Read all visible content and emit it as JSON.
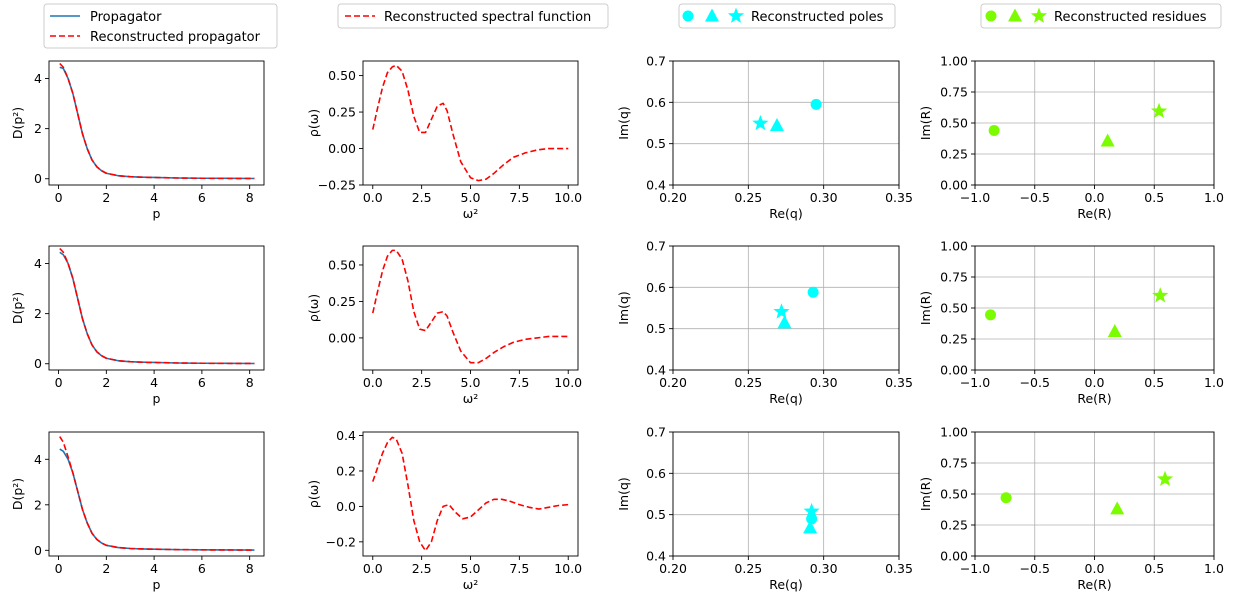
{
  "colors": {
    "propagator": "#1f77b4",
    "reconstructed": "#ff0000",
    "poles": "#00ffff",
    "residues": "#7cfc00",
    "grid": "#b0b0b0",
    "legend_border": "#cccccc"
  },
  "legends": {
    "col1": [
      {
        "label": "Propagator",
        "style": "solid",
        "color": "#1f77b4"
      },
      {
        "label": "Reconstructed propagator",
        "style": "dashed",
        "color": "#ff0000"
      }
    ],
    "col2": [
      {
        "label": "Reconstructed spectral function",
        "style": "dashed",
        "color": "#ff0000"
      }
    ],
    "col3": {
      "label": "Reconstructed poles",
      "markers": [
        "circle",
        "triangle",
        "star"
      ],
      "color": "#00ffff"
    },
    "col4": {
      "label": "Reconstructed residues",
      "markers": [
        "circle",
        "triangle",
        "star"
      ],
      "color": "#7cfc00"
    }
  },
  "chart_data": [
    {
      "type": "line",
      "panel": "propagator-row1",
      "xlabel": "p",
      "ylabel": "D(p²)",
      "xlim": [
        -0.4,
        8.6
      ],
      "ylim": [
        -0.25,
        4.7
      ],
      "xticks": [
        "0",
        "2",
        "4",
        "6",
        "8"
      ],
      "yticks": [
        "0",
        "2",
        "4"
      ],
      "grid": false,
      "series": [
        {
          "name": "Propagator",
          "style": "solid",
          "color": "#1f77b4",
          "x": [
            0.05,
            0.2,
            0.4,
            0.6,
            0.8,
            1.0,
            1.2,
            1.4,
            1.6,
            1.8,
            2.0,
            2.5,
            3.0,
            3.5,
            4.0,
            5.0,
            6.0,
            7.0,
            8.2
          ],
          "y": [
            4.45,
            4.4,
            4.0,
            3.4,
            2.6,
            1.8,
            1.2,
            0.75,
            0.48,
            0.32,
            0.22,
            0.12,
            0.08,
            0.06,
            0.05,
            0.03,
            0.02,
            0.015,
            0.01
          ]
        },
        {
          "name": "Reconstructed propagator",
          "style": "dashed",
          "color": "#ff0000",
          "x": [
            0.05,
            0.2,
            0.4,
            0.6,
            0.8,
            1.0,
            1.2,
            1.4,
            1.6,
            1.8,
            2.0,
            2.5,
            3.0,
            3.5,
            4.0,
            5.0,
            6.0,
            7.0,
            8.2
          ],
          "y": [
            4.6,
            4.45,
            4.0,
            3.4,
            2.6,
            1.8,
            1.2,
            0.75,
            0.48,
            0.32,
            0.22,
            0.12,
            0.08,
            0.06,
            0.05,
            0.03,
            0.02,
            0.015,
            0.01
          ]
        }
      ]
    },
    {
      "type": "line",
      "panel": "spectral-row1",
      "xlabel": "ω²",
      "ylabel": "ρ(ω)",
      "xlim": [
        -0.5,
        10.5
      ],
      "ylim": [
        -0.25,
        0.6
      ],
      "xticks": [
        "0.0",
        "2.5",
        "5.0",
        "7.5",
        "10.0"
      ],
      "yticks": [
        "−0.25",
        "0.00",
        "0.25",
        "0.50"
      ],
      "ytick_values": [
        -0.25,
        0,
        0.25,
        0.5
      ],
      "grid": false,
      "series": [
        {
          "name": "Reconstructed spectral function",
          "style": "dashed",
          "color": "#ff0000",
          "x": [
            0,
            0.25,
            0.5,
            0.75,
            1.0,
            1.2,
            1.5,
            1.8,
            2.1,
            2.4,
            2.7,
            3.0,
            3.3,
            3.6,
            3.8,
            4.1,
            4.5,
            5.0,
            5.4,
            5.8,
            6.2,
            6.7,
            7.2,
            7.8,
            8.4,
            9.0,
            9.5,
            10.0
          ],
          "y": [
            0.13,
            0.28,
            0.42,
            0.52,
            0.56,
            0.57,
            0.53,
            0.4,
            0.22,
            0.11,
            0.11,
            0.2,
            0.29,
            0.31,
            0.26,
            0.1,
            -0.09,
            -0.2,
            -0.22,
            -0.21,
            -0.17,
            -0.11,
            -0.06,
            -0.03,
            -0.01,
            0.0,
            0.0,
            0.0
          ]
        }
      ]
    },
    {
      "type": "scatter",
      "panel": "poles-row1",
      "xlabel": "Re(q)",
      "ylabel": "Im(q)",
      "xlim": [
        0.2,
        0.35
      ],
      "ylim": [
        0.4,
        0.7
      ],
      "xticks": [
        "0.20",
        "0.25",
        "0.30",
        "0.35"
      ],
      "xtick_values": [
        0.2,
        0.25,
        0.3,
        0.35
      ],
      "yticks": [
        "0.4",
        "0.5",
        "0.6",
        "0.7"
      ],
      "ytick_values": [
        0.4,
        0.5,
        0.6,
        0.7
      ],
      "grid": true,
      "points": [
        {
          "marker": "circle",
          "x": 0.295,
          "y": 0.595
        },
        {
          "marker": "triangle",
          "x": 0.269,
          "y": 0.544
        },
        {
          "marker": "star",
          "x": 0.258,
          "y": 0.549
        }
      ]
    },
    {
      "type": "scatter",
      "panel": "residues-row1",
      "xlabel": "Re(R)",
      "ylabel": "Im(R)",
      "xlim": [
        -1.0,
        1.0
      ],
      "ylim": [
        0.0,
        1.0
      ],
      "xticks": [
        "−1.0",
        "−0.5",
        "0.0",
        "0.5",
        "1.0"
      ],
      "xtick_values": [
        -1,
        -0.5,
        0,
        0.5,
        1
      ],
      "yticks": [
        "0.00",
        "0.25",
        "0.50",
        "0.75",
        "1.00"
      ],
      "ytick_values": [
        0,
        0.25,
        0.5,
        0.75,
        1
      ],
      "grid": true,
      "points": [
        {
          "marker": "circle",
          "x": -0.84,
          "y": 0.44
        },
        {
          "marker": "triangle",
          "x": 0.11,
          "y": 0.355
        },
        {
          "marker": "star",
          "x": 0.54,
          "y": 0.595
        }
      ]
    },
    {
      "type": "line",
      "panel": "propagator-row2",
      "xlabel": "p",
      "ylabel": "D(p²)",
      "xlim": [
        -0.4,
        8.6
      ],
      "ylim": [
        -0.25,
        4.7
      ],
      "xticks": [
        "0",
        "2",
        "4",
        "6",
        "8"
      ],
      "yticks": [
        "0",
        "2",
        "4"
      ],
      "grid": false,
      "series": [
        {
          "name": "Propagator",
          "style": "solid",
          "color": "#1f77b4",
          "x": [
            0.05,
            0.2,
            0.4,
            0.6,
            0.8,
            1.0,
            1.2,
            1.4,
            1.6,
            1.8,
            2.0,
            2.5,
            3.0,
            3.5,
            4.0,
            5.0,
            6.0,
            7.0,
            8.2
          ],
          "y": [
            4.45,
            4.35,
            4.0,
            3.4,
            2.6,
            1.8,
            1.2,
            0.75,
            0.48,
            0.32,
            0.22,
            0.12,
            0.08,
            0.06,
            0.05,
            0.03,
            0.02,
            0.015,
            0.01
          ]
        },
        {
          "name": "Reconstructed propagator",
          "style": "dashed",
          "color": "#ff0000",
          "x": [
            0.05,
            0.2,
            0.4,
            0.6,
            0.8,
            1.0,
            1.2,
            1.4,
            1.6,
            1.8,
            2.0,
            2.5,
            3.0,
            3.5,
            4.0,
            5.0,
            6.0,
            7.0,
            8.2
          ],
          "y": [
            4.6,
            4.45,
            4.0,
            3.4,
            2.6,
            1.8,
            1.2,
            0.75,
            0.48,
            0.32,
            0.22,
            0.12,
            0.08,
            0.06,
            0.05,
            0.03,
            0.02,
            0.015,
            0.01
          ]
        }
      ]
    },
    {
      "type": "line",
      "panel": "spectral-row2",
      "xlabel": "ω²",
      "ylabel": "ρ(ω)",
      "xlim": [
        -0.5,
        10.5
      ],
      "ylim": [
        -0.22,
        0.63
      ],
      "xticks": [
        "0.0",
        "2.5",
        "5.0",
        "7.5",
        "10.0"
      ],
      "yticks": [
        "0.00",
        "0.25",
        "0.50"
      ],
      "ytick_values": [
        0,
        0.25,
        0.5
      ],
      "grid": false,
      "series": [
        {
          "name": "Reconstructed spectral function",
          "style": "dashed",
          "color": "#ff0000",
          "x": [
            0,
            0.25,
            0.5,
            0.75,
            1.0,
            1.2,
            1.5,
            1.8,
            2.1,
            2.4,
            2.7,
            3.0,
            3.3,
            3.6,
            3.8,
            4.1,
            4.5,
            5.0,
            5.4,
            5.8,
            6.2,
            6.7,
            7.2,
            7.8,
            8.4,
            9.0,
            9.5,
            10.0
          ],
          "y": [
            0.17,
            0.32,
            0.46,
            0.56,
            0.6,
            0.6,
            0.54,
            0.39,
            0.18,
            0.06,
            0.05,
            0.11,
            0.17,
            0.18,
            0.15,
            0.04,
            -0.09,
            -0.17,
            -0.17,
            -0.14,
            -0.1,
            -0.06,
            -0.03,
            -0.01,
            0.0,
            0.01,
            0.01,
            0.01
          ]
        }
      ]
    },
    {
      "type": "scatter",
      "panel": "poles-row2",
      "xlabel": "Re(q)",
      "ylabel": "Im(q)",
      "xlim": [
        0.2,
        0.35
      ],
      "ylim": [
        0.4,
        0.7
      ],
      "xticks": [
        "0.20",
        "0.25",
        "0.30",
        "0.35"
      ],
      "xtick_values": [
        0.2,
        0.25,
        0.3,
        0.35
      ],
      "yticks": [
        "0.4",
        "0.5",
        "0.6",
        "0.7"
      ],
      "ytick_values": [
        0.4,
        0.5,
        0.6,
        0.7
      ],
      "grid": true,
      "points": [
        {
          "marker": "circle",
          "x": 0.293,
          "y": 0.588
        },
        {
          "marker": "triangle",
          "x": 0.274,
          "y": 0.514
        },
        {
          "marker": "star",
          "x": 0.272,
          "y": 0.541
        }
      ]
    },
    {
      "type": "scatter",
      "panel": "residues-row2",
      "xlabel": "Re(R)",
      "ylabel": "Im(R)",
      "xlim": [
        -1.0,
        1.0
      ],
      "ylim": [
        0.0,
        1.0
      ],
      "xticks": [
        "−1.0",
        "−0.5",
        "0.0",
        "0.5",
        "1.0"
      ],
      "xtick_values": [
        -1,
        -0.5,
        0,
        0.5,
        1
      ],
      "yticks": [
        "0.00",
        "0.25",
        "0.50",
        "0.75",
        "1.00"
      ],
      "ytick_values": [
        0,
        0.25,
        0.5,
        0.75,
        1
      ],
      "grid": true,
      "points": [
        {
          "marker": "circle",
          "x": -0.87,
          "y": 0.445
        },
        {
          "marker": "triangle",
          "x": 0.17,
          "y": 0.31
        },
        {
          "marker": "star",
          "x": 0.55,
          "y": 0.6
        }
      ]
    },
    {
      "type": "line",
      "panel": "propagator-row3",
      "xlabel": "p",
      "ylabel": "D(p²)",
      "xlim": [
        -0.4,
        8.6
      ],
      "ylim": [
        -0.25,
        5.2
      ],
      "xticks": [
        "0",
        "2",
        "4",
        "6",
        "8"
      ],
      "yticks": [
        "0",
        "2",
        "4"
      ],
      "grid": false,
      "series": [
        {
          "name": "Propagator",
          "style": "solid",
          "color": "#1f77b4",
          "x": [
            0.05,
            0.2,
            0.4,
            0.6,
            0.8,
            1.0,
            1.2,
            1.4,
            1.6,
            1.8,
            2.0,
            2.5,
            3.0,
            3.5,
            4.0,
            5.0,
            6.0,
            7.0,
            8.2
          ],
          "y": [
            4.45,
            4.35,
            4.0,
            3.4,
            2.6,
            1.8,
            1.2,
            0.75,
            0.48,
            0.32,
            0.22,
            0.12,
            0.08,
            0.06,
            0.05,
            0.03,
            0.02,
            0.015,
            0.01
          ]
        },
        {
          "name": "Reconstructed propagator",
          "style": "dashed",
          "color": "#ff0000",
          "x": [
            0.05,
            0.2,
            0.4,
            0.6,
            0.8,
            1.0,
            1.2,
            1.4,
            1.6,
            1.8,
            2.0,
            2.5,
            3.0,
            3.5,
            4.0,
            5.0,
            6.0,
            7.0,
            8.2
          ],
          "y": [
            5.0,
            4.75,
            4.1,
            3.4,
            2.6,
            1.8,
            1.2,
            0.75,
            0.48,
            0.32,
            0.22,
            0.12,
            0.08,
            0.06,
            0.05,
            0.03,
            0.02,
            0.015,
            0.01
          ]
        }
      ]
    },
    {
      "type": "line",
      "panel": "spectral-row3",
      "xlabel": "ω²",
      "ylabel": "ρ(ω)",
      "xlim": [
        -0.5,
        10.5
      ],
      "ylim": [
        -0.28,
        0.42
      ],
      "xticks": [
        "0.0",
        "2.5",
        "5.0",
        "7.5",
        "10.0"
      ],
      "yticks": [
        "−0.2",
        "0.0",
        "0.2",
        "0.4"
      ],
      "ytick_values": [
        -0.2,
        0,
        0.2,
        0.4
      ],
      "grid": false,
      "series": [
        {
          "name": "Reconstructed spectral function",
          "style": "dashed",
          "color": "#ff0000",
          "x": [
            0,
            0.25,
            0.5,
            0.75,
            1.0,
            1.2,
            1.5,
            1.8,
            2.1,
            2.4,
            2.7,
            3.0,
            3.3,
            3.6,
            3.9,
            4.2,
            4.6,
            5.0,
            5.4,
            5.8,
            6.2,
            6.6,
            7.0,
            7.5,
            8.0,
            8.5,
            9.0,
            9.5,
            10.0
          ],
          "y": [
            0.14,
            0.22,
            0.3,
            0.36,
            0.39,
            0.38,
            0.3,
            0.12,
            -0.08,
            -0.2,
            -0.25,
            -0.2,
            -0.08,
            0.0,
            0.01,
            -0.03,
            -0.07,
            -0.06,
            -0.02,
            0.02,
            0.04,
            0.04,
            0.03,
            0.01,
            -0.005,
            -0.015,
            -0.005,
            0.005,
            0.01
          ]
        }
      ]
    },
    {
      "type": "scatter",
      "panel": "poles-row3",
      "xlabel": "Re(q)",
      "ylabel": "Im(q)",
      "xlim": [
        0.2,
        0.35
      ],
      "ylim": [
        0.4,
        0.7
      ],
      "xticks": [
        "0.20",
        "0.25",
        "0.30",
        "0.35"
      ],
      "xtick_values": [
        0.2,
        0.25,
        0.3,
        0.35
      ],
      "yticks": [
        "0.4",
        "0.5",
        "0.6",
        "0.7"
      ],
      "ytick_values": [
        0.4,
        0.5,
        0.6,
        0.7
      ],
      "grid": true,
      "points": [
        {
          "marker": "circle",
          "x": 0.292,
          "y": 0.49
        },
        {
          "marker": "triangle",
          "x": 0.291,
          "y": 0.468
        },
        {
          "marker": "star",
          "x": 0.292,
          "y": 0.508
        }
      ]
    },
    {
      "type": "scatter",
      "panel": "residues-row3",
      "xlabel": "Re(R)",
      "ylabel": "Im(R)",
      "xlim": [
        -1.0,
        1.0
      ],
      "ylim": [
        0.0,
        1.0
      ],
      "xticks": [
        "−1.0",
        "−0.5",
        "0.0",
        "0.5",
        "1.0"
      ],
      "xtick_values": [
        -1,
        -0.5,
        0,
        0.5,
        1
      ],
      "yticks": [
        "0.00",
        "0.25",
        "0.50",
        "0.75",
        "1.00"
      ],
      "ytick_values": [
        0,
        0.25,
        0.5,
        0.75,
        1
      ],
      "grid": true,
      "points": [
        {
          "marker": "circle",
          "x": -0.74,
          "y": 0.47
        },
        {
          "marker": "triangle",
          "x": 0.19,
          "y": 0.38
        },
        {
          "marker": "star",
          "x": 0.59,
          "y": 0.62
        }
      ]
    }
  ]
}
